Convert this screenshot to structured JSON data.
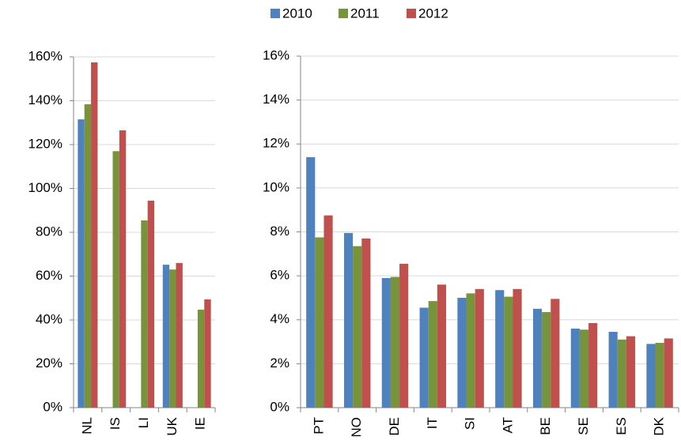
{
  "chart_data": [
    {
      "type": "bar",
      "categories": [
        "NL",
        "IS",
        "LI",
        "UK",
        "IE"
      ],
      "series": [
        {
          "name": "2010",
          "color": "#4f81bd",
          "values": [
            131.5,
            null,
            null,
            65.2,
            null
          ]
        },
        {
          "name": "2011",
          "color": "#77933c",
          "values": [
            138.4,
            117,
            85.4,
            63,
            44.7
          ]
        },
        {
          "name": "2012",
          "color": "#c0504d",
          "values": [
            157.5,
            126.5,
            94.4,
            66,
            49.4
          ]
        }
      ],
      "ylim": [
        0,
        160
      ],
      "yticks": [
        {
          "value": 0,
          "label": "0%"
        },
        {
          "value": 20,
          "label": "20%"
        },
        {
          "value": 40,
          "label": "40%"
        },
        {
          "value": 60,
          "label": "60%"
        },
        {
          "value": 80,
          "label": "80%"
        },
        {
          "value": 100,
          "label": "100%"
        },
        {
          "value": 120,
          "label": "120%"
        },
        {
          "value": 140,
          "label": "140%"
        },
        {
          "value": 160,
          "label": "160%"
        }
      ],
      "grid": true
    },
    {
      "type": "bar",
      "categories": [
        "PT",
        "NO",
        "DE",
        "IT",
        "SI",
        "AT",
        "BE",
        "SE",
        "ES",
        "DK"
      ],
      "series": [
        {
          "color": "#4f81bd",
          "values": [
            11.4,
            7.95,
            5.9,
            4.55,
            5.0,
            5.35,
            4.5,
            3.6,
            3.45,
            2.9
          ]
        },
        {
          "color": "#77933c",
          "values": [
            7.75,
            7.35,
            5.95,
            4.85,
            5.2,
            5.05,
            4.35,
            3.55,
            3.1,
            2.95
          ]
        },
        {
          "color": "#c0504d",
          "values": [
            8.75,
            7.7,
            6.55,
            5.6,
            5.4,
            5.4,
            4.95,
            3.85,
            3.25,
            3.15
          ]
        }
      ],
      "ylim": [
        0,
        16
      ],
      "yticks": [
        {
          "value": 0,
          "label": "0%"
        },
        {
          "value": 2,
          "label": "2%"
        },
        {
          "value": 4,
          "label": "4%"
        },
        {
          "value": 6,
          "label": "6%"
        },
        {
          "value": 8,
          "label": "8%"
        },
        {
          "value": 10,
          "label": "10%"
        },
        {
          "value": 12,
          "label": "12%"
        },
        {
          "value": 14,
          "label": "14%"
        },
        {
          "value": 16,
          "label": "16%"
        }
      ],
      "grid": true
    }
  ]
}
